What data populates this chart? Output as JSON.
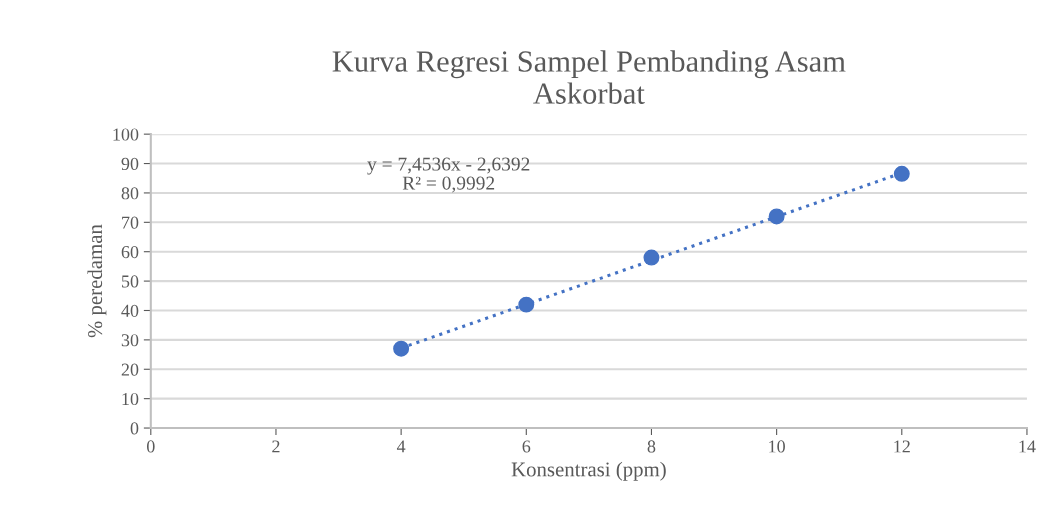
{
  "chart_data": {
    "type": "scatter",
    "title": "Kurva Regresi Sampel Pembanding Asam\nAskorbat",
    "xlabel": "Konsentrasi (ppm)",
    "ylabel": "% peredaman",
    "x": [
      4,
      6,
      8,
      10,
      12
    ],
    "series": [
      {
        "color": "#4472c4",
        "values": [
          27,
          42,
          58,
          72,
          86.5
        ],
        "marker": "circle"
      },
      {
        "type": "line",
        "color": "#4472c4",
        "x": [
          4,
          12
        ],
        "values": [
          27.2,
          86.8
        ],
        "line_style": "dotted"
      }
    ],
    "annotations": [
      "y = 7,4536x - 2,6392\nR² = 0,9992"
    ],
    "xlim": [
      0,
      14
    ],
    "xticks": [
      0,
      2,
      4,
      6,
      8,
      10,
      12,
      14
    ],
    "ylim": [
      0,
      100
    ],
    "yticks": [
      0,
      10,
      20,
      30,
      40,
      50,
      60,
      70,
      80,
      90,
      100
    ],
    "grid": "y",
    "legend": false
  }
}
